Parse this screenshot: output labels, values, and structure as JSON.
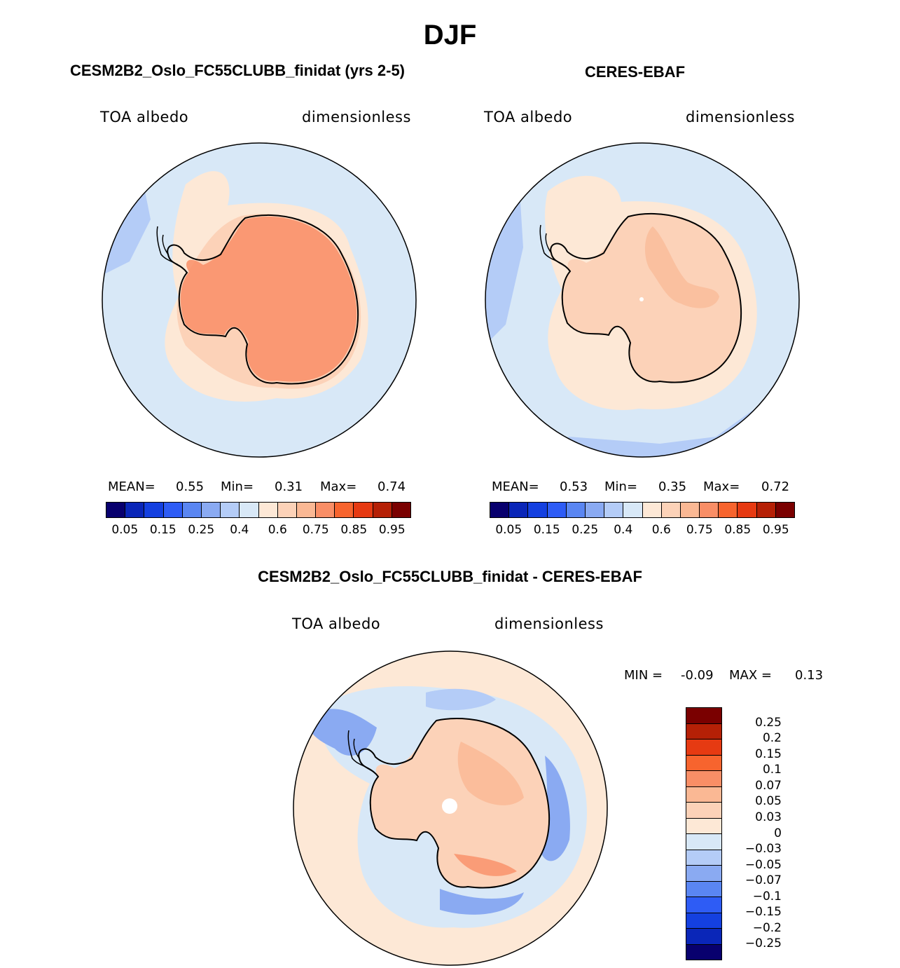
{
  "title": "DJF",
  "panels": {
    "model": {
      "title": "CESM2B2_Oslo_FC55CLUBB_finidat (yrs 2-5)",
      "variable": "TOA albedo",
      "units": "dimensionless",
      "stats": {
        "mean_label": "MEAN=",
        "mean": "0.55",
        "min_label": "Min=",
        "min": "0.31",
        "max_label": "Max=",
        "max": "0.74"
      }
    },
    "obs": {
      "title": "CERES-EBAF",
      "variable": "TOA albedo",
      "units": "dimensionless",
      "stats": {
        "mean_label": "MEAN=",
        "mean": "0.53",
        "min_label": "Min=",
        "min": "0.35",
        "max_label": "Max=",
        "max": "0.72"
      }
    },
    "diff": {
      "title": "CESM2B2_Oslo_FC55CLUBB_finidat - CERES-EBAF",
      "variable": "TOA albedo",
      "units": "dimensionless",
      "stats": {
        "min_label": "MIN =",
        "min": "-0.09",
        "max_label": "MAX =",
        "max": "0.13"
      }
    }
  },
  "colorbar_abs": {
    "colors": [
      "#08006e",
      "#0a26b8",
      "#1440e0",
      "#2e5cf5",
      "#5a86f2",
      "#8aaaf2",
      "#b4ccf7",
      "#d8e8f7",
      "#fde8d6",
      "#fcd2b8",
      "#fab894",
      "#f98e66",
      "#f7642e",
      "#e63a12",
      "#b52006",
      "#7a0000"
    ],
    "tick_labels": [
      "0.05",
      "0.15",
      "0.25",
      "0.4",
      "0.6",
      "0.75",
      "0.85",
      "0.95"
    ]
  },
  "colorbar_diff": {
    "colors": [
      "#7a0000",
      "#b52006",
      "#e63a12",
      "#f7642e",
      "#f98e66",
      "#fab894",
      "#fcd2b8",
      "#fde8d6",
      "#d8e8f7",
      "#b4ccf7",
      "#8aaaf2",
      "#5a86f2",
      "#2e5cf5",
      "#1440e0",
      "#0a26b8",
      "#08006e"
    ],
    "tick_labels": [
      "0.25",
      "0.2",
      "0.15",
      "0.1",
      "0.07",
      "0.05",
      "0.03",
      "0",
      "−0.03",
      "−0.05",
      "−0.07",
      "−0.1",
      "−0.15",
      "−0.2",
      "−0.25"
    ]
  },
  "map_colors": {
    "ocean": "#d8e8f7",
    "light_orange": "#fde8d6",
    "pale_salmon": "#fcd2b8",
    "salmon": "#fab894",
    "orange": "#f98e66",
    "light_blue": "#b4ccf7",
    "blue": "#8aaaf2",
    "mid_blue": "#5a86f2"
  }
}
